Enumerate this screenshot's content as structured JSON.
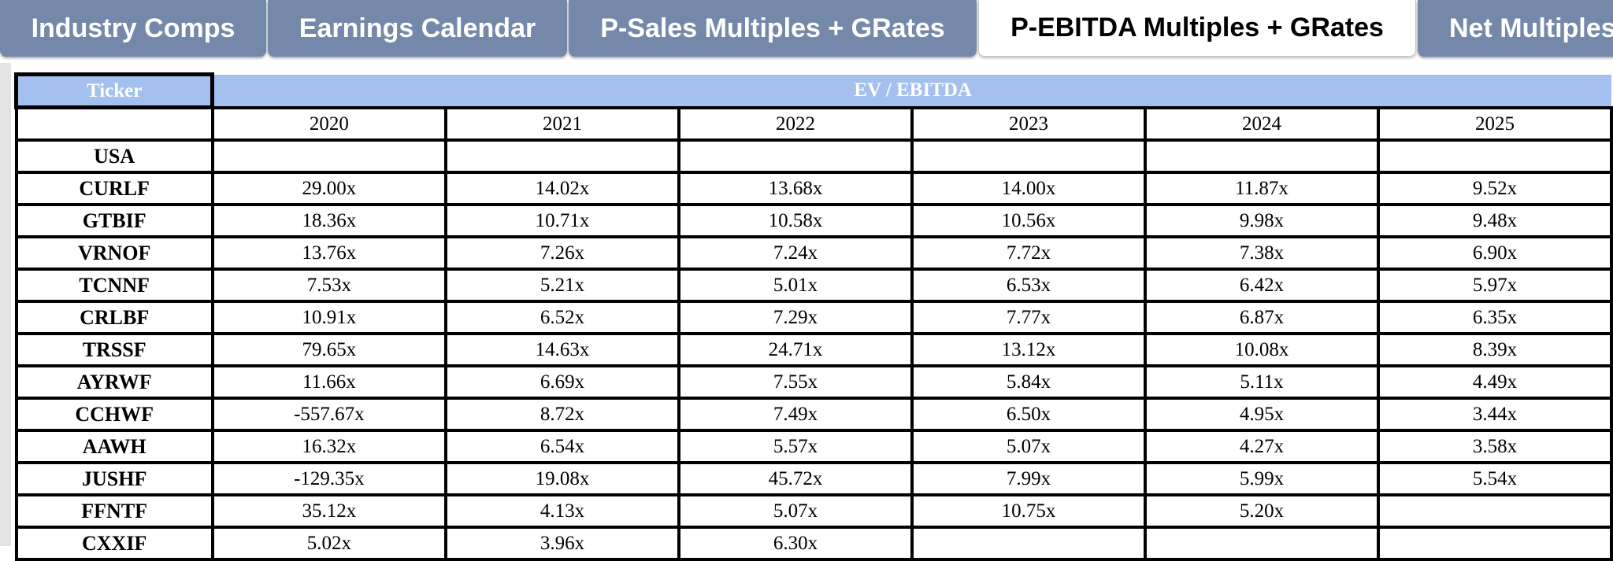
{
  "tabs": [
    {
      "label": "Industry Comps",
      "active": false
    },
    {
      "label": "Earnings Calendar",
      "active": false
    },
    {
      "label": "P-Sales Multiples + GRates",
      "active": false
    },
    {
      "label": "P-EBITDA Multiples + GRates",
      "active": true
    },
    {
      "label": "Net Multiples",
      "active": false
    }
  ],
  "table": {
    "ticker_header": "Ticker",
    "group_header": "EV / EBITDA",
    "years": [
      "2020",
      "2021",
      "2022",
      "2023",
      "2024",
      "2025"
    ],
    "rows": [
      {
        "ticker": "USA",
        "values": [
          "",
          "",
          "",
          "",
          "",
          ""
        ]
      },
      {
        "ticker": "CURLF",
        "values": [
          "29.00x",
          "14.02x",
          "13.68x",
          "14.00x",
          "11.87x",
          "9.52x"
        ]
      },
      {
        "ticker": "GTBIF",
        "values": [
          "18.36x",
          "10.71x",
          "10.58x",
          "10.56x",
          "9.98x",
          "9.48x"
        ]
      },
      {
        "ticker": "VRNOF",
        "values": [
          "13.76x",
          "7.26x",
          "7.24x",
          "7.72x",
          "7.38x",
          "6.90x"
        ]
      },
      {
        "ticker": "TCNNF",
        "values": [
          "7.53x",
          "5.21x",
          "5.01x",
          "6.53x",
          "6.42x",
          "5.97x"
        ]
      },
      {
        "ticker": "CRLBF",
        "values": [
          "10.91x",
          "6.52x",
          "7.29x",
          "7.77x",
          "6.87x",
          "6.35x"
        ]
      },
      {
        "ticker": "TRSSF",
        "values": [
          "79.65x",
          "14.63x",
          "24.71x",
          "13.12x",
          "10.08x",
          "8.39x"
        ]
      },
      {
        "ticker": "AYRWF",
        "values": [
          "11.66x",
          "6.69x",
          "7.55x",
          "5.84x",
          "5.11x",
          "4.49x"
        ]
      },
      {
        "ticker": "CCHWF",
        "values": [
          "-557.67x",
          "8.72x",
          "7.49x",
          "6.50x",
          "4.95x",
          "3.44x"
        ]
      },
      {
        "ticker": "AAWH",
        "values": [
          "16.32x",
          "6.54x",
          "5.57x",
          "5.07x",
          "4.27x",
          "3.58x"
        ]
      },
      {
        "ticker": "JUSHF",
        "values": [
          "-129.35x",
          "19.08x",
          "45.72x",
          "7.99x",
          "5.99x",
          "5.54x"
        ]
      },
      {
        "ticker": "FFNTF",
        "values": [
          "35.12x",
          "4.13x",
          "5.07x",
          "10.75x",
          "5.20x",
          ""
        ]
      },
      {
        "ticker": "CXXIF",
        "values": [
          "5.02x",
          "3.96x",
          "6.30x",
          "",
          "",
          ""
        ]
      }
    ]
  }
}
